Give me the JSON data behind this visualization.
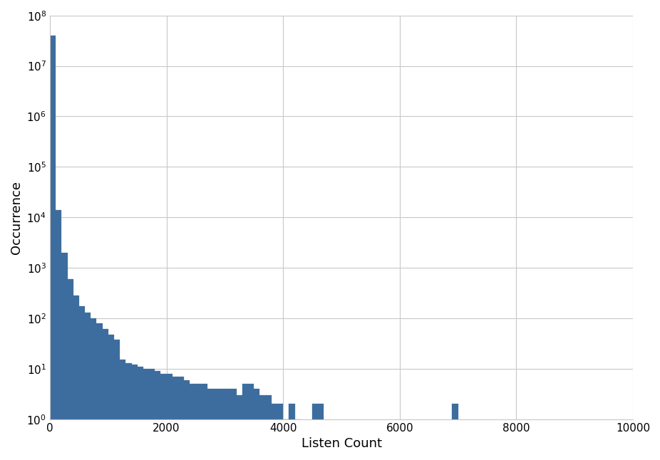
{
  "bar_color": "#3d6d9e",
  "bar_edgecolor": "#3d6d9e",
  "xlabel": "Listen Count",
  "ylabel": "Occurrence",
  "xlim": [
    0,
    10000
  ],
  "ylim_log": [
    1.0,
    100000000.0
  ],
  "xticks": [
    0,
    2000,
    4000,
    6000,
    8000,
    10000
  ],
  "yticks": [
    1,
    10,
    100,
    1000,
    10000,
    100000,
    1000000,
    10000000,
    100000000
  ],
  "grid_color": "#c8c8c8",
  "background_color": "#ffffff",
  "bar_heights": [
    40000000,
    14000,
    2000,
    600,
    280,
    175,
    130,
    100,
    80,
    62,
    48,
    38,
    15,
    13,
    12,
    11,
    10,
    10,
    9,
    8,
    8,
    7,
    7,
    6,
    5,
    5,
    5,
    4,
    4,
    4,
    4,
    4,
    3,
    5,
    5,
    4,
    3,
    3,
    2,
    2,
    1,
    2,
    1,
    0,
    0,
    2,
    2,
    0,
    0,
    0,
    0,
    0,
    0,
    0,
    0,
    0,
    0,
    0,
    0,
    0,
    0,
    0,
    0,
    0,
    0,
    0,
    0,
    0,
    0,
    2,
    0,
    0,
    0,
    0,
    0,
    0,
    0,
    0,
    0,
    0,
    0,
    0,
    0,
    0,
    0,
    0,
    0,
    0,
    0,
    0,
    0,
    0,
    0,
    0,
    0,
    0,
    0,
    0,
    0,
    0
  ],
  "xlabel_fontsize": 13,
  "ylabel_fontsize": 13,
  "tick_fontsize": 11
}
